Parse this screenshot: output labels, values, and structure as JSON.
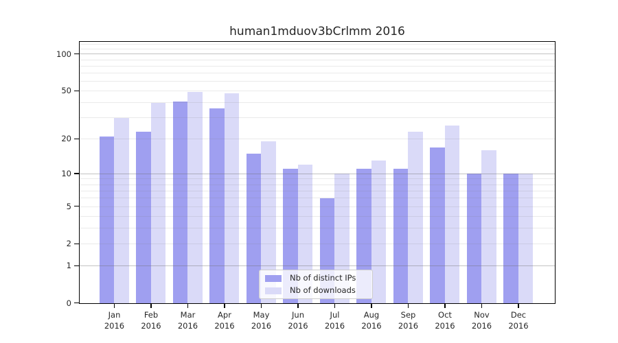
{
  "chart_data": {
    "type": "bar",
    "title": "human1mduov3bCrlmm 2016",
    "categories": [
      "Jan",
      "Feb",
      "Mar",
      "Apr",
      "May",
      "Jun",
      "Jul",
      "Aug",
      "Sep",
      "Oct",
      "Nov",
      "Dec"
    ],
    "category_year": "2016",
    "series": [
      {
        "name": "Nb of distinct IPs",
        "color": "#9f9ff0",
        "values": [
          21,
          23,
          41,
          36,
          15,
          11,
          6,
          11,
          11,
          17,
          10,
          10
        ]
      },
      {
        "name": "Nb of downloads",
        "color": "#dadaf8",
        "values": [
          30,
          40,
          49,
          48,
          19,
          12,
          10,
          13,
          23,
          26,
          16,
          10
        ]
      }
    ],
    "xlabel": "",
    "ylabel": "",
    "y_scale": "log1p",
    "y_ticks": [
      0,
      1,
      2,
      5,
      10,
      20,
      50,
      100
    ],
    "y_minor_gridlines": [
      2,
      3,
      4,
      5,
      6,
      7,
      8,
      9,
      20,
      30,
      40,
      50,
      60,
      70,
      80,
      90,
      110,
      120
    ],
    "y_major_gridlines": [
      1,
      10,
      100
    ],
    "ylim": [
      0,
      125
    ],
    "grid": true,
    "legend_position": "lower center"
  },
  "colors": {
    "grid_minor": "rgba(125,125,125,0.16)",
    "grid_major": "rgba(110,110,110,0.42)",
    "axis": "#000000",
    "text": "#262626",
    "legend_border": "#cccccc"
  }
}
